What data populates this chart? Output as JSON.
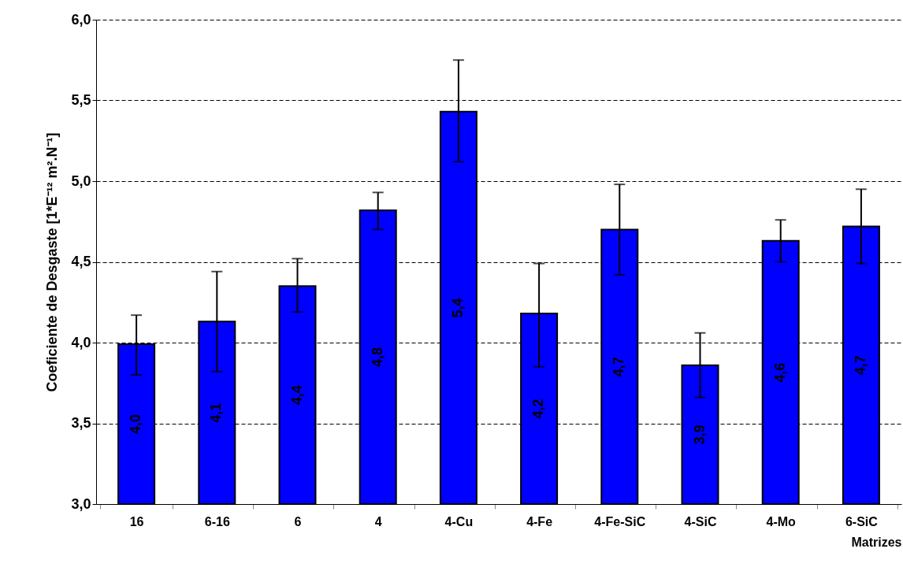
{
  "chart_data": {
    "type": "bar",
    "ylabel": "Coeficiente de Desgaste [1*E⁻¹² m².N⁻¹]",
    "xlabel": "Matrizes",
    "categories": [
      "16",
      "6-16",
      "6",
      "4",
      "4-Cu",
      "4-Fe",
      "4-Fe-SiC",
      "4-SiC",
      "4-Mo",
      "6-SiC"
    ],
    "values": [
      3.99,
      4.13,
      4.35,
      4.82,
      5.43,
      4.18,
      4.7,
      3.86,
      4.63,
      4.72
    ],
    "errors": [
      [
        3.8,
        4.17
      ],
      [
        3.82,
        4.44
      ],
      [
        4.19,
        4.52
      ],
      [
        4.7,
        4.93
      ],
      [
        5.12,
        5.75
      ],
      [
        3.85,
        4.49
      ],
      [
        4.42,
        4.98
      ],
      [
        3.66,
        4.06
      ],
      [
        4.5,
        4.76
      ],
      [
        4.49,
        4.95
      ]
    ],
    "value_labels": [
      "4,0",
      "4,1",
      "4,4",
      "4,8",
      "5,4",
      "4,2",
      "4,7",
      "3,9",
      "4,6",
      "4,7"
    ],
    "color": "#0000ff",
    "ylim": [
      3.0,
      6.0
    ],
    "yticks": [
      {
        "value": 3.0,
        "label": "3,0"
      },
      {
        "value": 3.5,
        "label": "3,5"
      },
      {
        "value": 4.0,
        "label": "4,0"
      },
      {
        "value": 4.5,
        "label": "4,5"
      },
      {
        "value": 5.0,
        "label": "5,0"
      },
      {
        "value": 5.5,
        "label": "5,5"
      },
      {
        "value": 6.0,
        "label": "6,0"
      }
    ],
    "grid": "y"
  }
}
